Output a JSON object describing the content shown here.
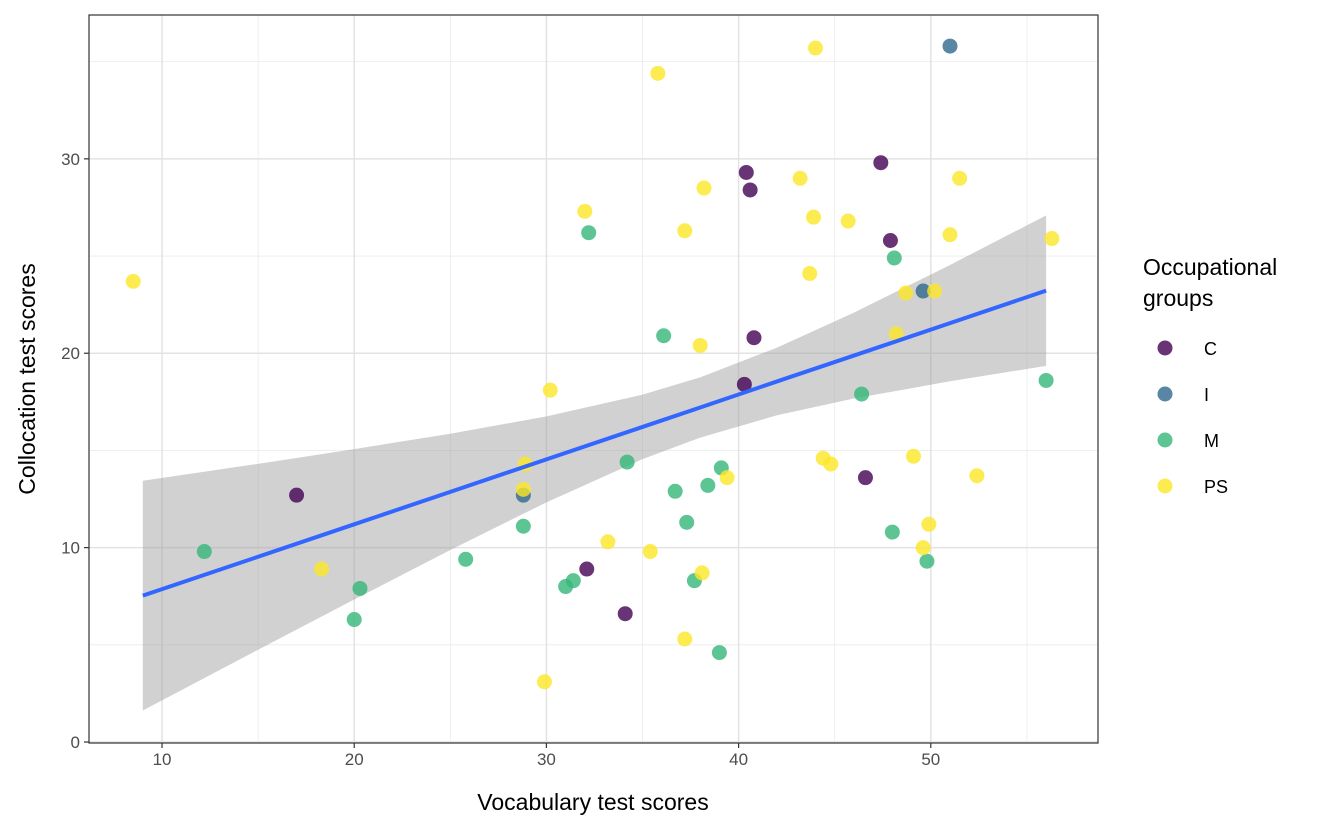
{
  "chart_data": {
    "type": "scatter",
    "title": "",
    "xlabel": "Vocabulary test scores",
    "ylabel": "Collocation test scores",
    "xlim": [
      6.2,
      58.7
    ],
    "ylim": [
      -0.05,
      37.4
    ],
    "xticks": [
      10,
      20,
      30,
      40,
      50
    ],
    "yticks": [
      0,
      10,
      20,
      30
    ],
    "grid": true,
    "theme": "black-white panel border",
    "legend": {
      "title_lines": [
        "Occupational",
        "groups"
      ],
      "placement": "right",
      "entries": [
        "C",
        "I",
        "M",
        "PS"
      ]
    },
    "point_alpha": 0.8,
    "series": [
      {
        "name": "C",
        "color": "#440154",
        "points": [
          [
            40.4,
            29.3
          ],
          [
            40.6,
            28.4
          ],
          [
            47.4,
            29.8
          ],
          [
            47.9,
            25.8
          ],
          [
            40.8,
            20.8
          ],
          [
            40.3,
            18.4
          ],
          [
            46.6,
            13.6
          ],
          [
            32.1,
            8.9
          ],
          [
            34.1,
            6.6
          ],
          [
            17.0,
            12.7
          ]
        ]
      },
      {
        "name": "I",
        "color": "#31688E",
        "points": [
          [
            51.0,
            35.8
          ],
          [
            49.6,
            23.2
          ],
          [
            28.8,
            12.7
          ]
        ]
      },
      {
        "name": "M",
        "color": "#35B779",
        "points": [
          [
            32.2,
            26.2
          ],
          [
            36.1,
            20.9
          ],
          [
            48.1,
            24.9
          ],
          [
            46.4,
            17.9
          ],
          [
            56.0,
            18.6
          ],
          [
            34.2,
            14.4
          ],
          [
            39.1,
            14.1
          ],
          [
            36.7,
            12.9
          ],
          [
            38.4,
            13.2
          ],
          [
            37.3,
            11.3
          ],
          [
            28.8,
            11.1
          ],
          [
            48.0,
            10.8
          ],
          [
            49.8,
            9.3
          ],
          [
            25.8,
            9.4
          ],
          [
            31.4,
            8.3
          ],
          [
            31.0,
            8.0
          ],
          [
            37.7,
            8.3
          ],
          [
            12.2,
            9.8
          ],
          [
            20.3,
            7.9
          ],
          [
            20.0,
            6.3
          ],
          [
            39.0,
            4.6
          ]
        ]
      },
      {
        "name": "PS",
        "color": "#FDE725",
        "points": [
          [
            8.5,
            23.7
          ],
          [
            35.8,
            34.4
          ],
          [
            44.0,
            35.7
          ],
          [
            32.0,
            27.3
          ],
          [
            38.2,
            28.5
          ],
          [
            43.2,
            29.0
          ],
          [
            51.5,
            29.0
          ],
          [
            37.2,
            26.3
          ],
          [
            43.9,
            27.0
          ],
          [
            45.7,
            26.8
          ],
          [
            51.0,
            26.1
          ],
          [
            56.3,
            25.9
          ],
          [
            43.7,
            24.1
          ],
          [
            48.7,
            23.1
          ],
          [
            50.2,
            23.2
          ],
          [
            48.2,
            21.0
          ],
          [
            38.0,
            20.4
          ],
          [
            30.2,
            18.1
          ],
          [
            28.9,
            14.3
          ],
          [
            28.8,
            13.0
          ],
          [
            44.4,
            14.6
          ],
          [
            44.8,
            14.3
          ],
          [
            49.1,
            14.7
          ],
          [
            52.4,
            13.7
          ],
          [
            39.4,
            13.6
          ],
          [
            33.2,
            10.3
          ],
          [
            35.4,
            9.8
          ],
          [
            49.9,
            11.2
          ],
          [
            49.6,
            10.0
          ],
          [
            38.1,
            8.7
          ],
          [
            18.3,
            8.9
          ],
          [
            37.2,
            5.3
          ],
          [
            29.9,
            3.1
          ]
        ]
      }
    ],
    "fit": {
      "method": "linear",
      "color": "#3366FF",
      "band_color": "#999999",
      "x": [
        9,
        15,
        20,
        25,
        30,
        35,
        38,
        42,
        46,
        51,
        56
      ],
      "y": [
        7.53,
        9.53,
        11.2,
        12.87,
        14.54,
        16.21,
        17.21,
        18.55,
        19.88,
        21.55,
        23.22
      ],
      "lower": [
        1.62,
        4.75,
        7.33,
        9.88,
        12.33,
        14.55,
        15.66,
        16.81,
        17.67,
        18.56,
        19.35
      ],
      "upper": [
        13.44,
        14.31,
        15.07,
        15.86,
        16.75,
        17.87,
        18.76,
        20.29,
        22.09,
        24.54,
        27.09
      ]
    }
  }
}
